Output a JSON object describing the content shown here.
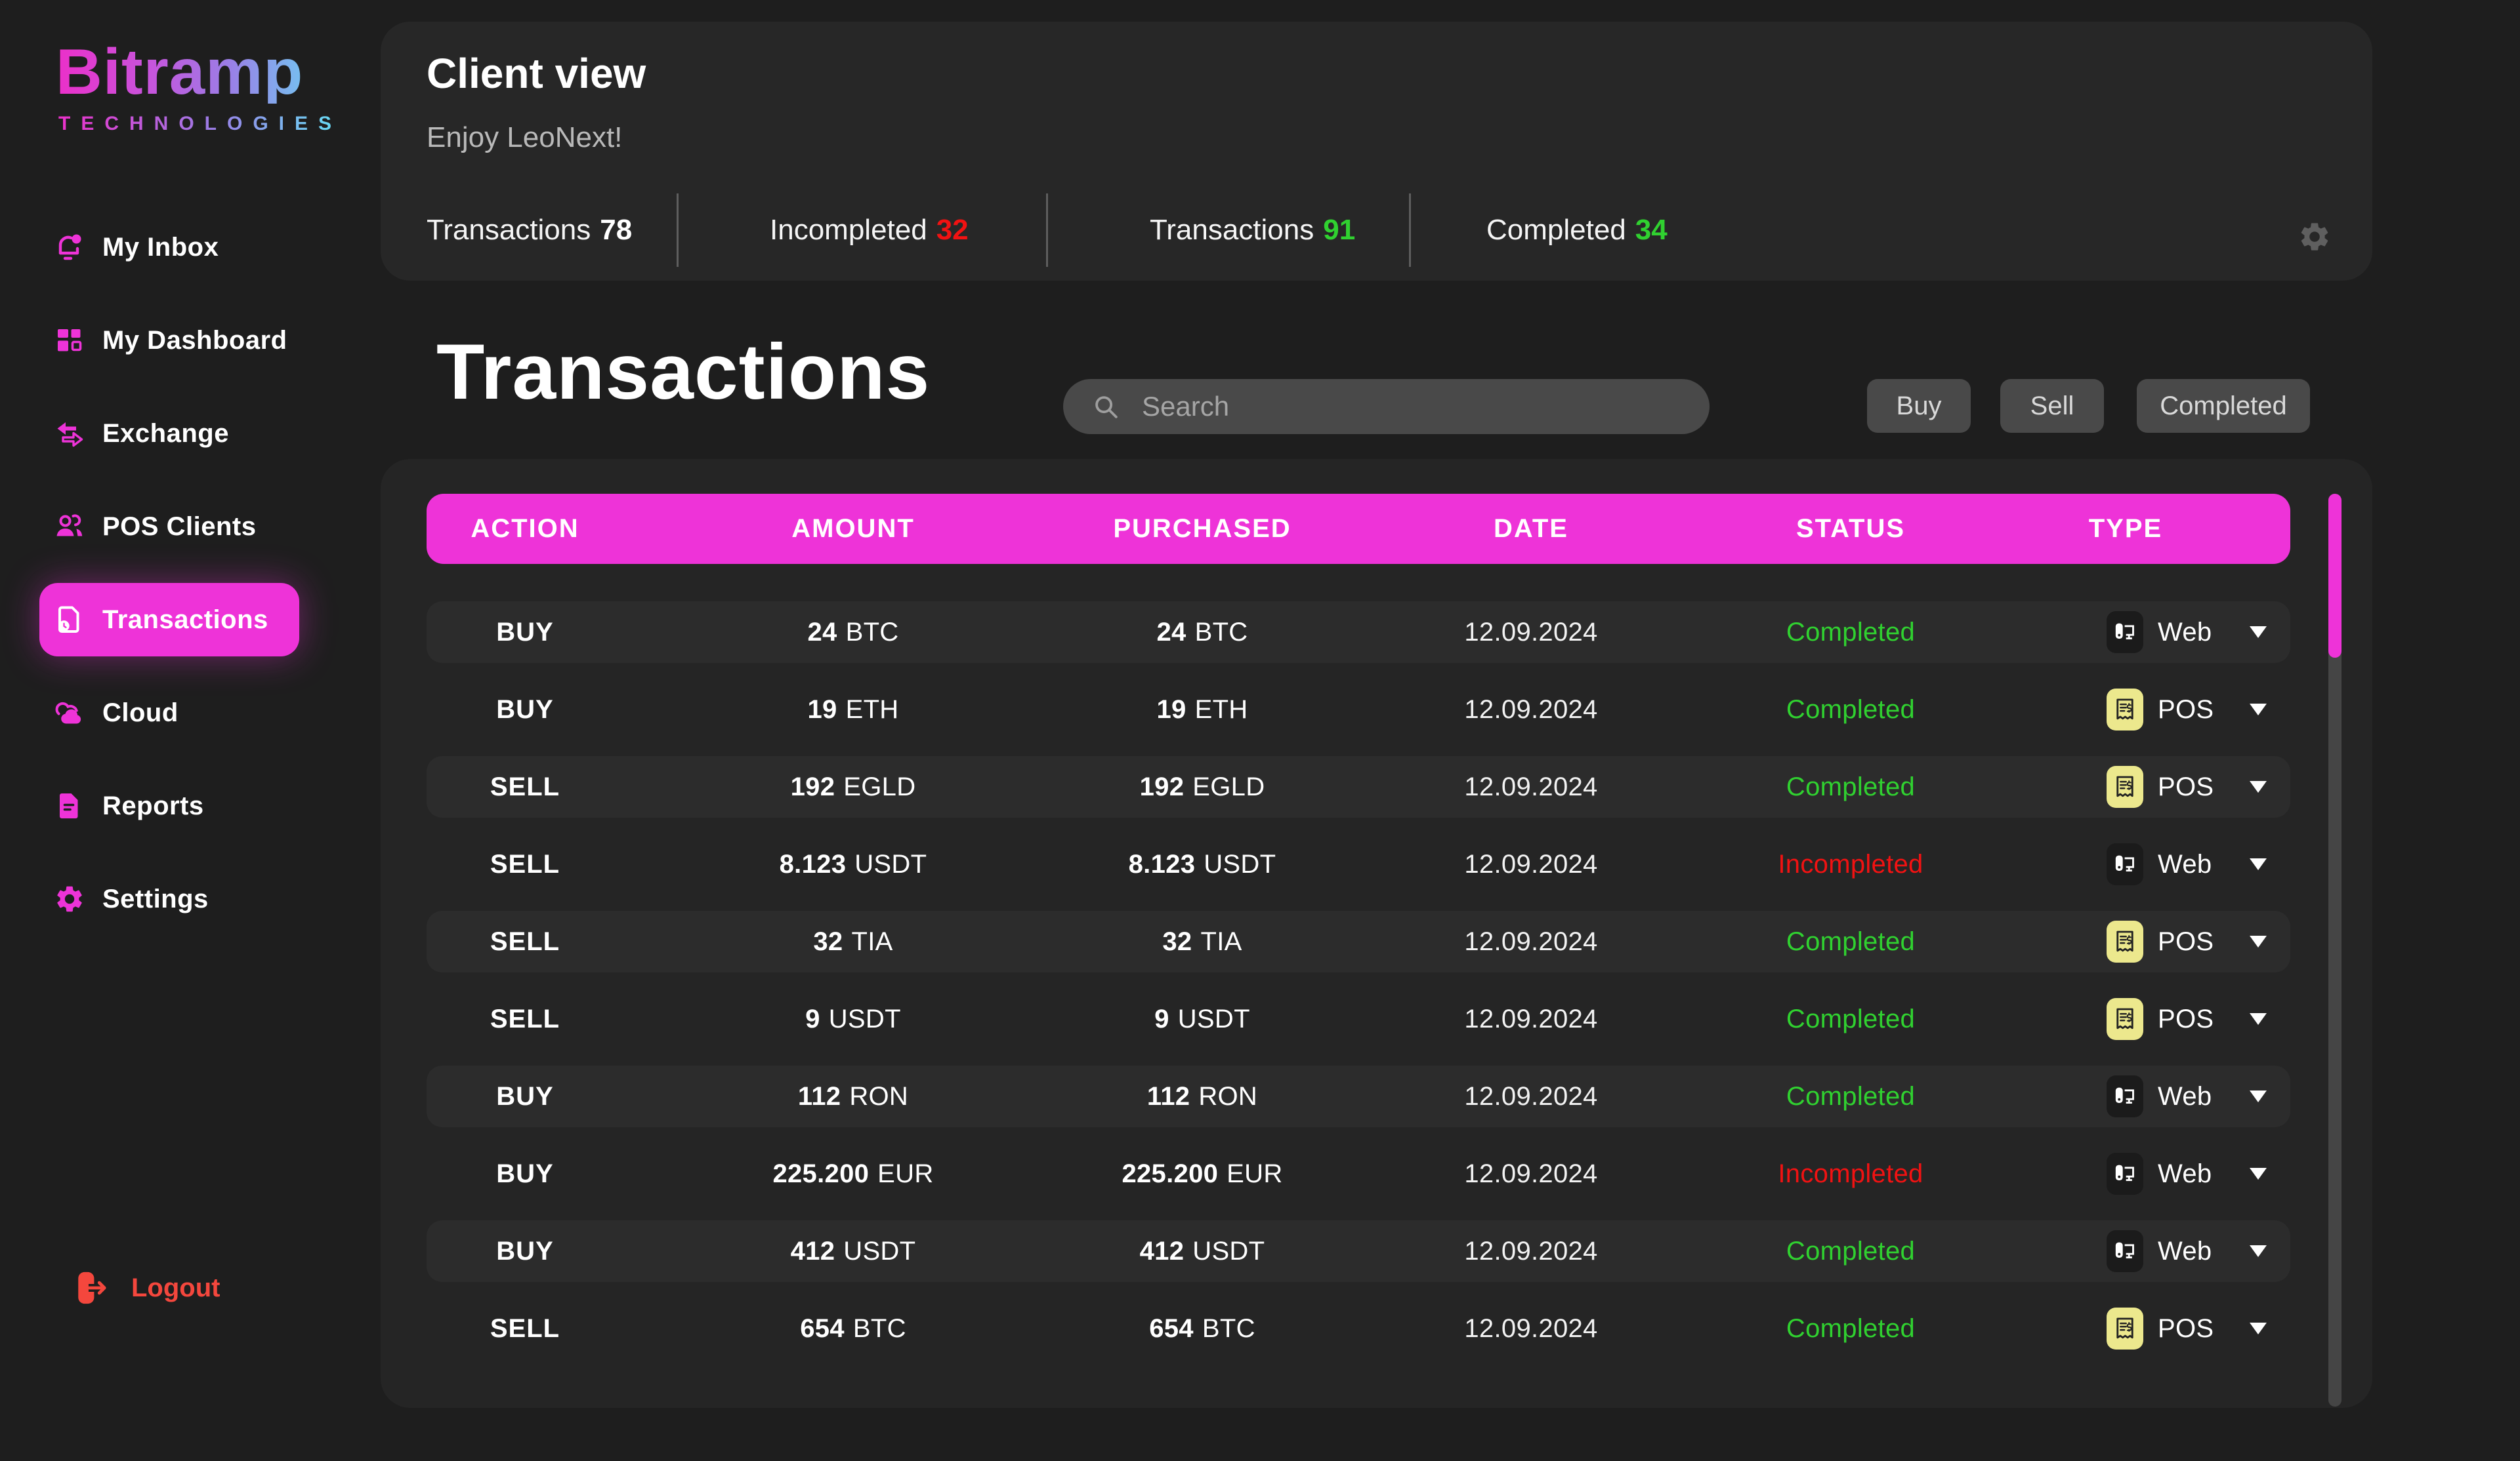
{
  "brand": {
    "name": "Bitramp",
    "tagline": "TECHNOLOGIES"
  },
  "sidebar": {
    "items": [
      {
        "id": "my-inbox",
        "label": "My Inbox",
        "icon": "bell-icon",
        "active": false
      },
      {
        "id": "my-dashboard",
        "label": "My Dashboard",
        "icon": "dashboard-icon",
        "active": false
      },
      {
        "id": "exchange",
        "label": "Exchange",
        "icon": "exchange-icon",
        "active": false
      },
      {
        "id": "pos-clients",
        "label": "POS Clients",
        "icon": "users-icon",
        "active": false
      },
      {
        "id": "transactions",
        "label": "Transactions",
        "icon": "transactions-icon",
        "active": true
      },
      {
        "id": "cloud",
        "label": "Cloud",
        "icon": "cloud-icon",
        "active": false
      },
      {
        "id": "reports",
        "label": "Reports",
        "icon": "reports-icon",
        "active": false
      },
      {
        "id": "settings",
        "label": "Settings",
        "icon": "gear-icon",
        "active": false
      }
    ],
    "logout_label": "Logout"
  },
  "header": {
    "title": "Client view",
    "subtitle": "Enjoy LeoNext!",
    "stats": [
      {
        "label": "Transactions",
        "value": "78",
        "value_color": "#ffffff"
      },
      {
        "label": "Incompleted",
        "value": "32",
        "value_color": "#f11212"
      },
      {
        "label": "Transactions",
        "value": "91",
        "value_color": "#30d130"
      },
      {
        "label": "Completed",
        "value": "34",
        "value_color": "#30d130"
      }
    ]
  },
  "page": {
    "title": "Transactions"
  },
  "search": {
    "placeholder": "Search"
  },
  "filters": [
    {
      "label": "Buy"
    },
    {
      "label": "Sell"
    },
    {
      "label": "Completed"
    }
  ],
  "table": {
    "columns": [
      "ACTION",
      "AMOUNT",
      "PURCHASED",
      "DATE",
      "STATUS",
      "TYPE"
    ],
    "rows": [
      {
        "action": "BUY",
        "amount": {
          "value": "24",
          "unit": "BTC"
        },
        "purchased": {
          "value": "24",
          "unit": "BTC"
        },
        "date": "12.09.2024",
        "status": "Completed",
        "type": {
          "kind": "web",
          "label": "Web"
        }
      },
      {
        "action": "BUY",
        "amount": {
          "value": "19",
          "unit": "ETH"
        },
        "purchased": {
          "value": "19",
          "unit": "ETH"
        },
        "date": "12.09.2024",
        "status": "Completed",
        "type": {
          "kind": "pos",
          "label": "POS"
        }
      },
      {
        "action": "SELL",
        "amount": {
          "value": "192",
          "unit": "EGLD"
        },
        "purchased": {
          "value": "192",
          "unit": "EGLD"
        },
        "date": "12.09.2024",
        "status": "Completed",
        "type": {
          "kind": "pos",
          "label": "POS"
        }
      },
      {
        "action": "SELL",
        "amount": {
          "value": "8.123",
          "unit": "USDT"
        },
        "purchased": {
          "value": "8.123",
          "unit": "USDT"
        },
        "date": "12.09.2024",
        "status": "Incompleted",
        "type": {
          "kind": "web",
          "label": "Web"
        }
      },
      {
        "action": "SELL",
        "amount": {
          "value": "32",
          "unit": "TIA"
        },
        "purchased": {
          "value": "32",
          "unit": "TIA"
        },
        "date": "12.09.2024",
        "status": "Completed",
        "type": {
          "kind": "pos",
          "label": "POS"
        }
      },
      {
        "action": "SELL",
        "amount": {
          "value": "9",
          "unit": "USDT"
        },
        "purchased": {
          "value": "9",
          "unit": "USDT"
        },
        "date": "12.09.2024",
        "status": "Completed",
        "type": {
          "kind": "pos",
          "label": "POS"
        }
      },
      {
        "action": "BUY",
        "amount": {
          "value": "112",
          "unit": "RON"
        },
        "purchased": {
          "value": "112",
          "unit": "RON"
        },
        "date": "12.09.2024",
        "status": "Completed",
        "type": {
          "kind": "web",
          "label": "Web"
        }
      },
      {
        "action": "BUY",
        "amount": {
          "value": "225.200",
          "unit": "EUR"
        },
        "purchased": {
          "value": "225.200",
          "unit": "EUR"
        },
        "date": "12.09.2024",
        "status": "Incompleted",
        "type": {
          "kind": "web",
          "label": "Web"
        }
      },
      {
        "action": "BUY",
        "amount": {
          "value": "412",
          "unit": "USDT"
        },
        "purchased": {
          "value": "412",
          "unit": "USDT"
        },
        "date": "12.09.2024",
        "status": "Completed",
        "type": {
          "kind": "web",
          "label": "Web"
        }
      },
      {
        "action": "SELL",
        "amount": {
          "value": "654",
          "unit": "BTC"
        },
        "purchased": {
          "value": "654",
          "unit": "BTC"
        },
        "date": "12.09.2024",
        "status": "Completed",
        "type": {
          "kind": "pos",
          "label": "POS"
        }
      }
    ]
  },
  "colors": {
    "accent": "#ee33d8",
    "green": "#30d130",
    "red": "#f11212",
    "pos_yellow": "#ece88d",
    "logout_red": "#f4473d"
  }
}
